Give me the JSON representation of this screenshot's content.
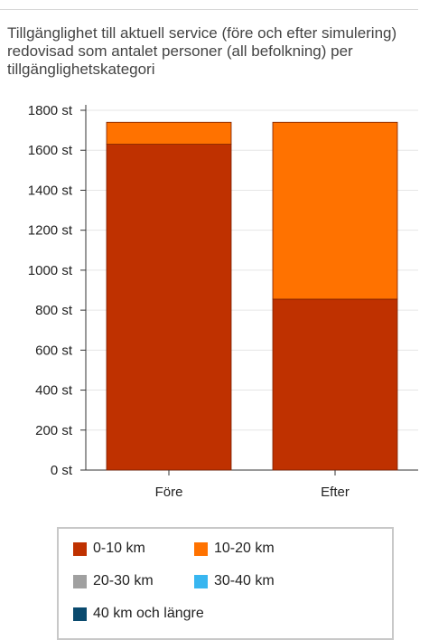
{
  "chart_data": {
    "type": "bar",
    "stacked": true,
    "title": "Tillgänglighet till aktuell service (före och efter simulering) redovisad som antalet personer (all befolkning) per tillgänglighetskategori",
    "categories": [
      "Före",
      "Efter"
    ],
    "ylim": [
      0,
      1800
    ],
    "yticks": [
      0,
      200,
      400,
      600,
      800,
      1000,
      1200,
      1400,
      1600,
      1800
    ],
    "ytick_suffix": " st",
    "grid": true,
    "legend_position": "bottom",
    "series": [
      {
        "name": "0-10 km",
        "color": "#bf3100",
        "values": [
          1630,
          855
        ]
      },
      {
        "name": "10-20 km",
        "color": "#ff7200",
        "values": [
          110,
          885
        ]
      },
      {
        "name": "20-30 km",
        "color": "#a0a0a0",
        "values": [
          0,
          0
        ]
      },
      {
        "name": "30-40 km",
        "color": "#38b6f0",
        "values": [
          0,
          0
        ]
      },
      {
        "name": "40 km och längre",
        "color": "#0a4a6e",
        "values": [
          0,
          0
        ]
      }
    ]
  }
}
